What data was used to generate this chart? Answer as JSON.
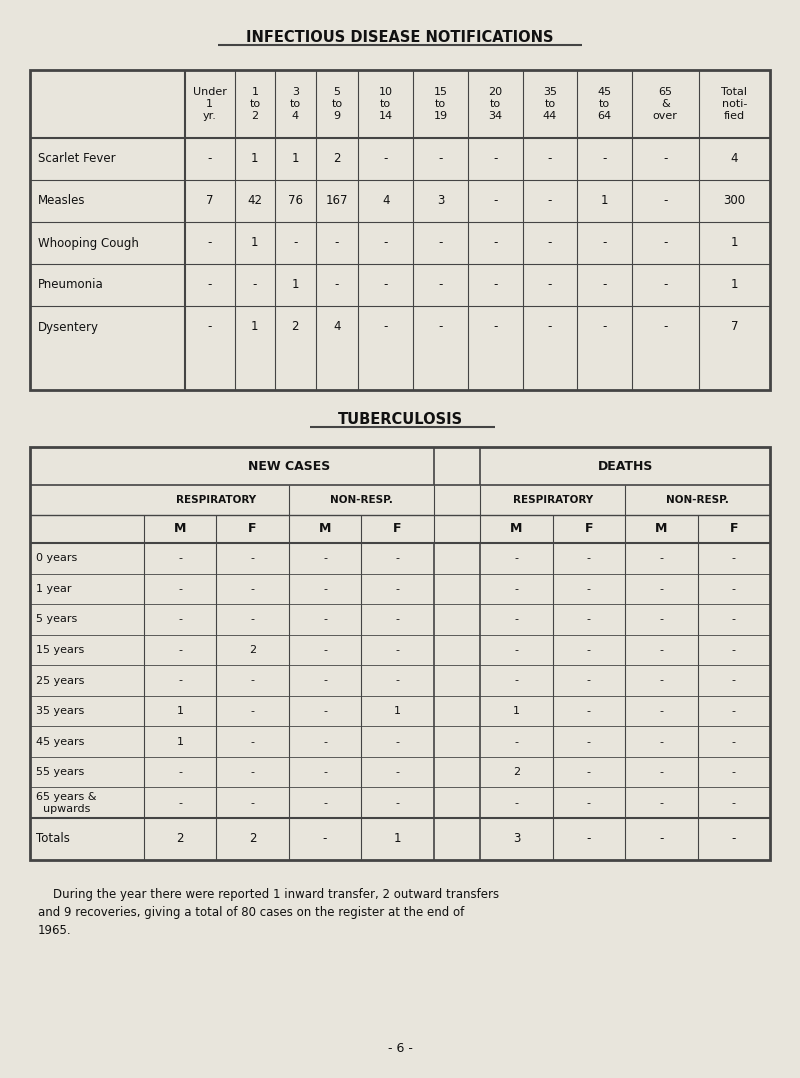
{
  "bg_color": "#e8e5dc",
  "title1": "INFECTIOUS DISEASE NOTIFICATIONS",
  "title2": "TUBERCULOSIS",
  "footer_line1": "    During the year there were reported 1 inward transfer, 2 outward transfers",
  "footer_line2": "and 9 recoveries, giving a total of 80 cases on the register at the end of",
  "footer_line3": "1965.",
  "page_number": "- 6 -",
  "notif_col_headers": [
    "Under\n1\nyr.",
    "1\nto\n2",
    "3\nto\n4",
    "5\nto\n9",
    "10\nto\n14",
    "15\nto\n19",
    "20\nto\n34",
    "35\nto\n44",
    "45\nto\n64",
    "65\n&\nover",
    "Total\nnoti-\nfied"
  ],
  "notif_rows": [
    [
      "Scarlet Fever",
      "-",
      "1",
      "1",
      "2",
      "-",
      "-",
      "-",
      "-",
      "-",
      "-",
      "4"
    ],
    [
      "Measles",
      "7",
      "42",
      "76",
      "167",
      "4",
      "3",
      "-",
      "-",
      "1",
      "-",
      "300"
    ],
    [
      "Whooping Cough",
      "-",
      "1",
      "-",
      "-",
      "-",
      "-",
      "-",
      "-",
      "-",
      "-",
      "1"
    ],
    [
      "Pneumonia",
      "-",
      "-",
      "1",
      "-",
      "-",
      "-",
      "-",
      "-",
      "-",
      "-",
      "1"
    ],
    [
      "Dysentery",
      "-",
      "1",
      "2",
      "4",
      "-",
      "-",
      "-",
      "-",
      "-",
      "-",
      "7"
    ]
  ],
  "tb_age_labels": [
    "0 years",
    "1 year",
    "5 years",
    "15 years",
    "25 years",
    "35 years",
    "45 years",
    "55 years",
    "65 years &\nupwards"
  ],
  "tb_new_cases": [
    [
      "-",
      "-",
      "-",
      "-"
    ],
    [
      "-",
      "-",
      "-",
      "-"
    ],
    [
      "-",
      "-",
      "-",
      "-"
    ],
    [
      "-",
      "2",
      "-",
      "-"
    ],
    [
      "-",
      "-",
      "-",
      "-"
    ],
    [
      "1",
      "-",
      "-",
      "1"
    ],
    [
      "1",
      "-",
      "-",
      "-"
    ],
    [
      "-",
      "-",
      "-",
      "-"
    ],
    [
      "-",
      "-",
      "-",
      "-"
    ]
  ],
  "tb_deaths": [
    [
      "-",
      "-",
      "-",
      "-"
    ],
    [
      "-",
      "-",
      "-",
      "-"
    ],
    [
      "-",
      "-",
      "-",
      "-"
    ],
    [
      "-",
      "-",
      "-",
      "-"
    ],
    [
      "-",
      "-",
      "-",
      "-"
    ],
    [
      "1",
      "-",
      "-",
      "-"
    ],
    [
      "-",
      "-",
      "-",
      "-"
    ],
    [
      "2",
      "-",
      "-",
      "-"
    ],
    [
      "-",
      "-",
      "-",
      "-"
    ]
  ],
  "tb_totals_new": [
    "2",
    "2",
    "-",
    "1"
  ],
  "tb_totals_deaths": [
    "3",
    "-",
    "-",
    "-"
  ]
}
